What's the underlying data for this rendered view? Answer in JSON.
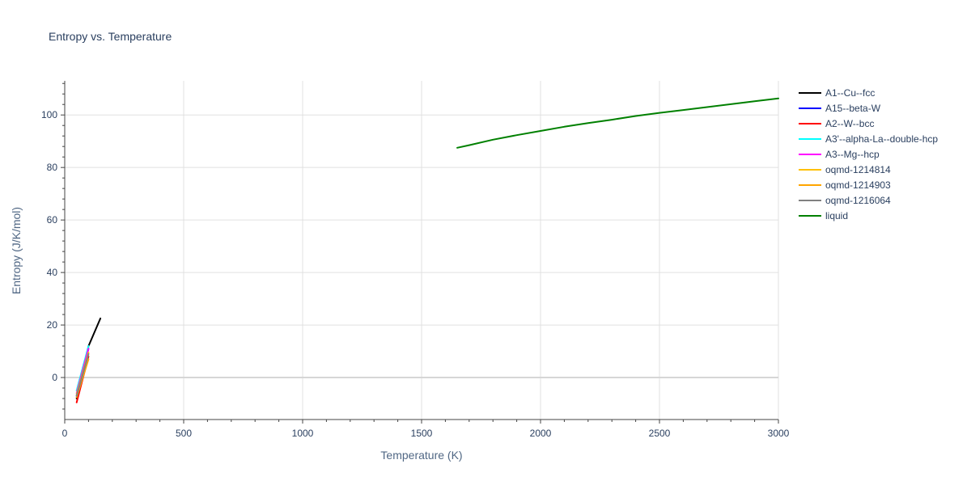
{
  "chart_data": {
    "type": "line",
    "title": "Entropy vs. Temperature",
    "xlabel": "Temperature (K)",
    "ylabel": "Entropy (J/K/mol)",
    "xlim": [
      0,
      3000
    ],
    "ylim": [
      -16,
      113
    ],
    "x_ticks": [
      0,
      500,
      1000,
      1500,
      2000,
      2500,
      3000
    ],
    "y_ticks": [
      0,
      20,
      40,
      60,
      80,
      100
    ],
    "grid": true,
    "legend_position": "right",
    "series": [
      {
        "name": "A1--Cu--fcc",
        "color": "#000000",
        "x": [
          50,
          100,
          150
        ],
        "y": [
          -8,
          12,
          22.5
        ]
      },
      {
        "name": "A15--beta-W",
        "color": "#0000ff",
        "x": [
          50,
          100
        ],
        "y": [
          -7,
          11
        ]
      },
      {
        "name": "A2--W--bcc",
        "color": "#ff0000",
        "x": [
          50,
          100
        ],
        "y": [
          -9.5,
          8
        ]
      },
      {
        "name": "A3'--alpha-La--double-hcp",
        "color": "#00ffff",
        "x": [
          50,
          100
        ],
        "y": [
          -5,
          12
        ]
      },
      {
        "name": "A3--Mg--hcp",
        "color": "#ff00ff",
        "x": [
          50,
          100
        ],
        "y": [
          -6,
          11
        ]
      },
      {
        "name": "oqmd-1214814",
        "color": "#ffc000",
        "x": [
          50,
          100
        ],
        "y": [
          -6.5,
          9.5
        ]
      },
      {
        "name": "oqmd-1214903",
        "color": "#ffa500",
        "x": [
          50,
          100
        ],
        "y": [
          -7.5,
          7
        ]
      },
      {
        "name": "oqmd-1216064",
        "color": "#808080",
        "x": [
          50,
          100
        ],
        "y": [
          -7,
          9
        ]
      },
      {
        "name": "liquid",
        "color": "#008000",
        "x": [
          1650,
          1700,
          1800,
          1900,
          2000,
          2100,
          2200,
          2300,
          2400,
          2500,
          2600,
          2700,
          2800,
          2900,
          3000
        ],
        "y": [
          87.5,
          88.5,
          90.6,
          92.3,
          93.9,
          95.5,
          96.9,
          98.2,
          99.6,
          100.8,
          101.9,
          103.0,
          104.1,
          105.2,
          106.3
        ]
      }
    ]
  }
}
